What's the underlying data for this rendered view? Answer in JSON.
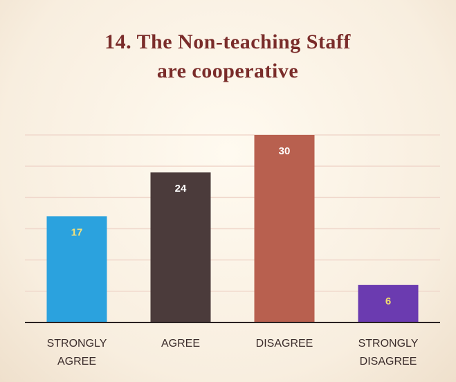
{
  "chart_data": {
    "type": "bar",
    "title": "14. The Non-teaching Staff are cooperative",
    "categories": [
      "STRONGLY AGREE",
      "AGREE",
      "DISAGREE",
      "STRONGLY DISAGREE"
    ],
    "values": [
      17,
      24,
      30,
      6
    ],
    "colors": [
      "#2ba2de",
      "#4b3b3b",
      "#b8604f",
      "#6b3bb0"
    ],
    "ylim": [
      0,
      30
    ],
    "yticks": [
      0,
      5,
      10,
      15,
      20,
      25,
      30
    ],
    "grid": true
  }
}
